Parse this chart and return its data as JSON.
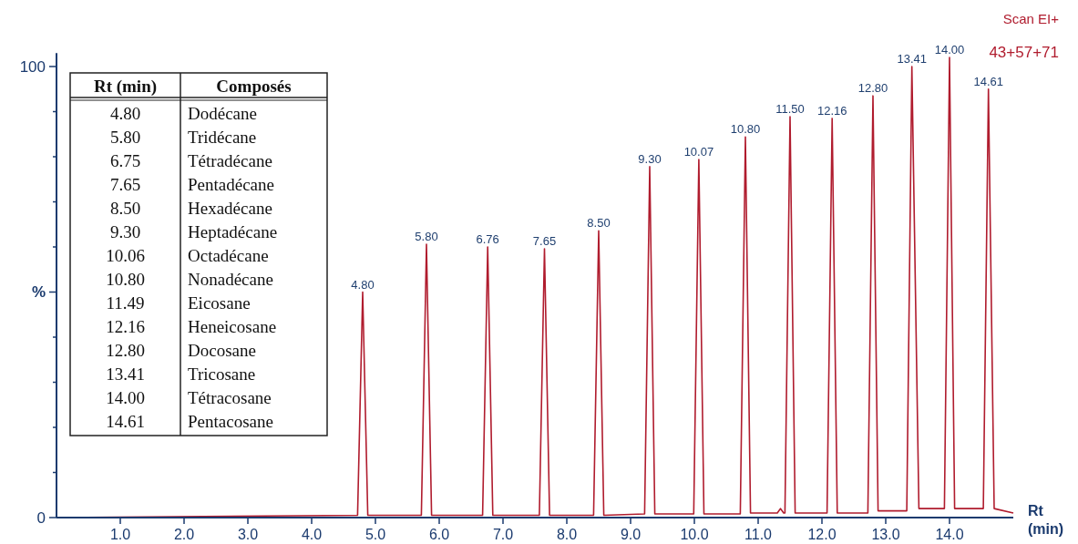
{
  "chart_data": [
    {
      "type": "line",
      "xlabel": "Rt (min)",
      "series": [
        {
          "color": "#b01c2e",
          "x": [
            0,
            4.72,
            4.8,
            4.88,
            5.72,
            5.8,
            5.88,
            6.68,
            6.76,
            6.84,
            7.57,
            7.65,
            7.73,
            8.42,
            8.5,
            8.58,
            9.22,
            9.3,
            9.38,
            9.99,
            10.07,
            10.15,
            10.72,
            10.8,
            10.88,
            11.3,
            11.35,
            11.4,
            11.42,
            11.5,
            11.58,
            12.08,
            12.16,
            12.24,
            12.72,
            12.8,
            12.88,
            13.33,
            13.41,
            13.52,
            13.92,
            14.0,
            14.08,
            14.53,
            14.61,
            14.7,
            15.0
          ],
          "values": [
            0,
            0.5,
            50,
            0.5,
            0.5,
            60.6,
            0.5,
            0.5,
            60,
            0.5,
            0.5,
            59.6,
            0.5,
            0.5,
            63.6,
            0.5,
            0.8,
            77.8,
            0.8,
            0.8,
            79.4,
            0.8,
            0.8,
            84.4,
            1,
            1,
            2,
            1,
            1,
            88.9,
            1,
            1,
            88.5,
            1,
            1,
            93.5,
            1.5,
            1.5,
            100,
            2,
            2,
            102,
            2,
            2,
            95,
            2,
            1
          ]
        }
      ],
      "xlim": [
        0,
        15.0
      ],
      "ylim": [
        0,
        103
      ],
      "xticks": [
        {
          "value": 1,
          "label": "1.0"
        },
        {
          "value": 2,
          "label": "2.0"
        },
        {
          "value": 3,
          "label": "3.0"
        },
        {
          "value": 4,
          "label": "4.0"
        },
        {
          "value": 5,
          "label": "5.0"
        },
        {
          "value": 6,
          "label": "6.0"
        },
        {
          "value": 7,
          "label": "7.0"
        },
        {
          "value": 8,
          "label": "8.0"
        },
        {
          "value": 9,
          "label": "9.0"
        },
        {
          "value": 10,
          "label": "10.0"
        },
        {
          "value": 11,
          "label": "11.0"
        },
        {
          "value": 12,
          "label": "12.0"
        },
        {
          "value": 13,
          "label": "13.0"
        },
        {
          "value": 14,
          "label": "14.0"
        }
      ],
      "yticks": [
        0,
        {
          "value": 10,
          "label": null
        },
        {
          "value": 20,
          "label": null
        },
        {
          "value": 30,
          "label": null
        },
        {
          "value": 40,
          "label": null
        },
        {
          "value": 50,
          "label": "%"
        },
        {
          "value": 60,
          "label": null
        },
        {
          "value": 70,
          "label": null
        },
        {
          "value": 80,
          "label": null
        },
        {
          "value": 90,
          "label": null
        },
        100
      ],
      "grid": false,
      "annotations": [
        "Scan EI+",
        "43+57+71",
        {
          "text": "4.80",
          "x": 4.8,
          "y": 50
        },
        {
          "text": "5.80",
          "x": 5.8,
          "y": 60.6
        },
        {
          "text": "6.76",
          "x": 6.76,
          "y": 60
        },
        {
          "text": "7.65",
          "x": 7.65,
          "y": 59.6
        },
        {
          "text": "8.50",
          "x": 8.5,
          "y": 63.6
        },
        {
          "text": "9.30",
          "x": 9.3,
          "y": 77.8
        },
        {
          "text": "10.07",
          "x": 10.07,
          "y": 79.4
        },
        {
          "text": "10.80",
          "x": 10.8,
          "y": 84.4
        },
        {
          "text": "11.50",
          "x": 11.5,
          "y": 88.9
        },
        {
          "text": "12.16",
          "x": 12.16,
          "y": 88.5
        },
        {
          "text": "12.80",
          "x": 12.8,
          "y": 93.5
        },
        {
          "text": "13.41",
          "x": 13.41,
          "y": 100
        },
        {
          "text": "14.00",
          "x": 14.0,
          "y": 102
        },
        {
          "text": "14.61",
          "x": 14.61,
          "y": 95
        }
      ]
    },
    {
      "type": "other",
      "annotations": [
        "Rt (min)",
        "Composés",
        "4.80",
        "Dodécane",
        "5.80",
        "Tridécane",
        "6.75",
        "Tétradécane",
        "7.65",
        "Pentadécane",
        "8.50",
        "Hexadécane",
        "9.30",
        "Heptadécane",
        "10.06",
        "Octadécane",
        "10.80",
        "Nonadécane",
        "11.49",
        "Eicosane",
        "12.16",
        "Heneicosane",
        "12.80",
        "Docosane",
        "13.41",
        "Tricosane",
        "14.00",
        "Tétracosane",
        "14.61",
        "Pentacosane"
      ]
    }
  ]
}
